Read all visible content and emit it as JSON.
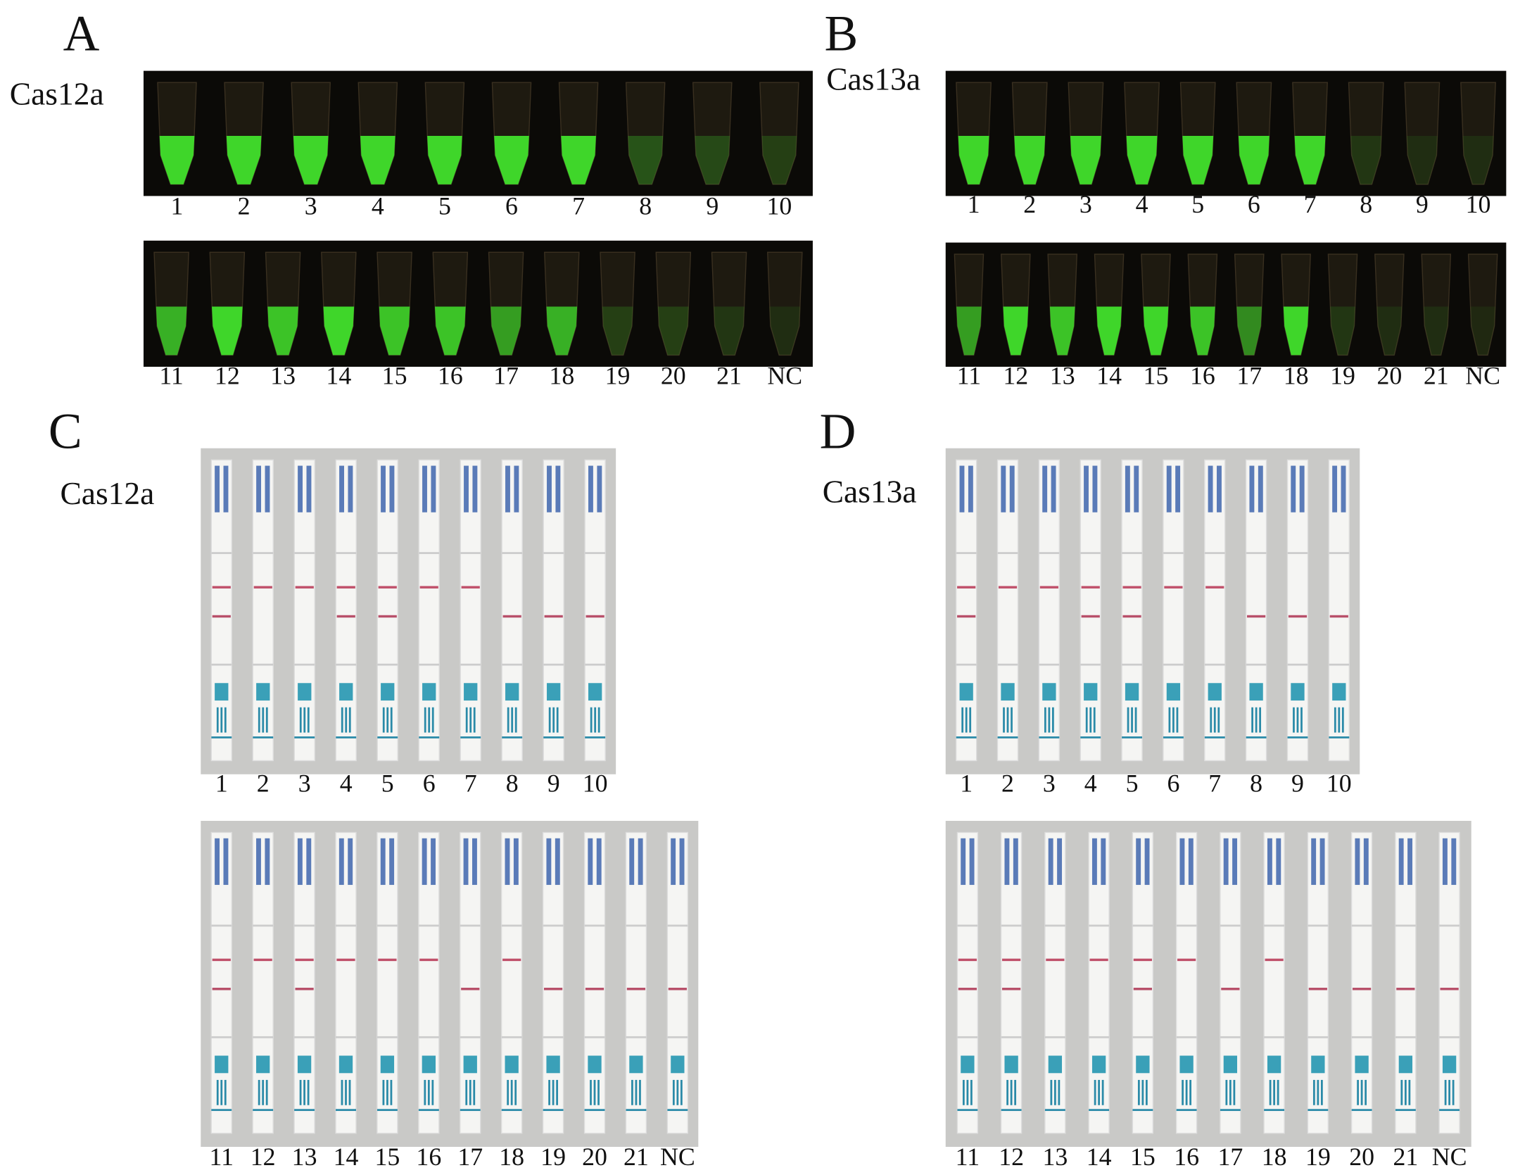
{
  "panels": [
    {
      "letter": "A",
      "assay": "Cas12a",
      "rows": [
        [
          "1",
          "2",
          "3",
          "4",
          "5",
          "6",
          "7",
          "8",
          "9",
          "10"
        ],
        [
          "11",
          "12",
          "13",
          "14",
          "15",
          "16",
          "17",
          "18",
          "19",
          "20",
          "21",
          "NC"
        ]
      ]
    },
    {
      "letter": "B",
      "assay": "Cas13a",
      "rows": [
        [
          "1",
          "2",
          "3",
          "4",
          "5",
          "6",
          "7",
          "8",
          "9",
          "10"
        ],
        [
          "11",
          "12",
          "13",
          "14",
          "15",
          "16",
          "17",
          "18",
          "19",
          "20",
          "21",
          "NC"
        ]
      ]
    },
    {
      "letter": "C",
      "assay": "Cas12a",
      "rows": [
        [
          "1",
          "2",
          "3",
          "4",
          "5",
          "6",
          "7",
          "8",
          "9",
          "10"
        ],
        [
          "11",
          "12",
          "13",
          "14",
          "15",
          "16",
          "17",
          "18",
          "19",
          "20",
          "21",
          "NC"
        ]
      ]
    },
    {
      "letter": "D",
      "assay": "Cas13a",
      "rows": [
        [
          "1",
          "2",
          "3",
          "4",
          "5",
          "6",
          "7",
          "8",
          "9",
          "10"
        ],
        [
          "11",
          "12",
          "13",
          "14",
          "15",
          "16",
          "17",
          "18",
          "19",
          "20",
          "21",
          "NC"
        ]
      ]
    }
  ]
}
